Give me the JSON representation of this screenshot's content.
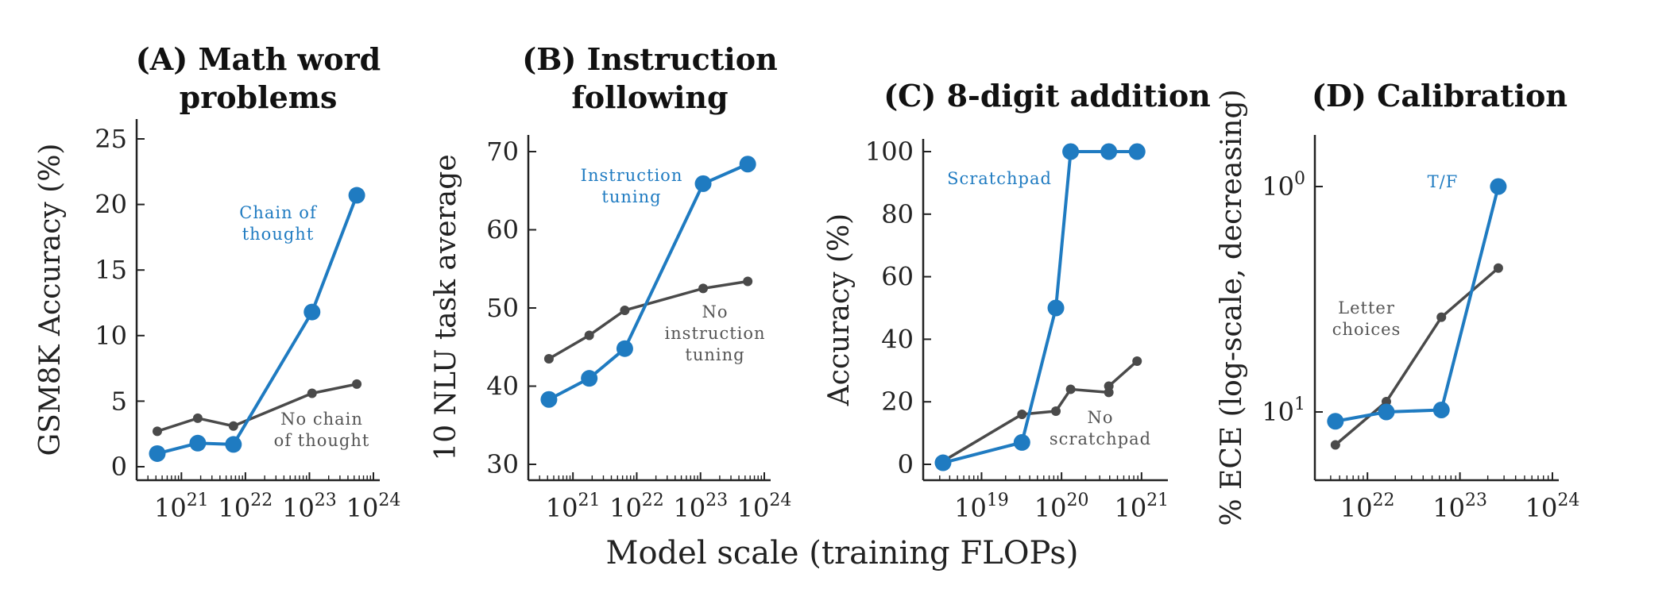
{
  "figure": {
    "shared_xlabel": "Model scale (training FLOPs)"
  },
  "colors": {
    "blue": "#1f7bc1",
    "gray": "#4a4a4a",
    "axis": "#222222"
  },
  "chart_data": [
    {
      "type": "line",
      "panel_id": "A",
      "title_lines": [
        "(A) Math word",
        "problems"
      ],
      "ylabel": "GSM8K Accuracy (%)",
      "xlabel": "",
      "x_scale": "log",
      "x_ticks": [
        "10^21",
        "10^22",
        "10^23",
        "10^24"
      ],
      "y_ticks": [
        0,
        5,
        10,
        15,
        20,
        25
      ],
      "series": [
        {
          "name": "Chain of thought",
          "color": "blue",
          "points": [
            {
              "x": 4.2e+20,
              "y": 1.0
            },
            {
              "x": 1.8e+21,
              "y": 1.8
            },
            {
              "x": 6.5e+21,
              "y": 1.7
            },
            {
              "x": 1.1e+23,
              "y": 11.8
            },
            {
              "x": 5.5e+23,
              "y": 20.7
            }
          ]
        },
        {
          "name": "No chain of thought",
          "color": "gray",
          "points": [
            {
              "x": 4.2e+20,
              "y": 2.7
            },
            {
              "x": 1.8e+21,
              "y": 3.7
            },
            {
              "x": 6.5e+21,
              "y": 3.1
            },
            {
              "x": 1.1e+23,
              "y": 5.6
            },
            {
              "x": 5.5e+23,
              "y": 6.3
            }
          ]
        }
      ],
      "annotations": [
        {
          "lines": [
            "Chain of",
            "thought"
          ],
          "color": "blue"
        },
        {
          "lines": [
            "No chain",
            "of thought"
          ],
          "color": "gray"
        }
      ]
    },
    {
      "type": "line",
      "panel_id": "B",
      "title_lines": [
        "(B) Instruction",
        "following"
      ],
      "ylabel": "10 NLU task average",
      "xlabel": "",
      "x_scale": "log",
      "x_ticks": [
        "10^21",
        "10^22",
        "10^23",
        "10^24"
      ],
      "y_ticks": [
        30,
        40,
        50,
        60,
        70
      ],
      "series": [
        {
          "name": "Instruction tuning",
          "color": "blue",
          "points": [
            {
              "x": 4.2e+20,
              "y": 38.3
            },
            {
              "x": 1.8e+21,
              "y": 41.0
            },
            {
              "x": 6.5e+21,
              "y": 44.8
            },
            {
              "x": 1.1e+23,
              "y": 65.9
            },
            {
              "x": 5.5e+23,
              "y": 68.4
            }
          ]
        },
        {
          "name": "No instruction tuning",
          "color": "gray",
          "points": [
            {
              "x": 4.2e+20,
              "y": 43.5
            },
            {
              "x": 1.8e+21,
              "y": 46.5
            },
            {
              "x": 6.5e+21,
              "y": 49.7
            },
            {
              "x": 1.1e+23,
              "y": 52.5
            },
            {
              "x": 5.5e+23,
              "y": 53.4
            }
          ]
        }
      ],
      "annotations": [
        {
          "lines": [
            "Instruction",
            "tuning"
          ],
          "color": "blue"
        },
        {
          "lines": [
            "No",
            "instruction",
            "tuning"
          ],
          "color": "gray"
        }
      ]
    },
    {
      "type": "line",
      "panel_id": "C",
      "title_lines": [
        "(C) 8-digit addition"
      ],
      "ylabel": "Accuracy (%)",
      "xlabel": "",
      "x_scale": "log",
      "x_ticks": [
        "10^19",
        "10^20",
        "10^21"
      ],
      "y_ticks": [
        0,
        20,
        40,
        60,
        80,
        100
      ],
      "series": [
        {
          "name": "Scratchpad",
          "color": "blue",
          "points": [
            {
              "x": 3.3e+18,
              "y": 0.5
            },
            {
              "x": 3.2e+19,
              "y": 7.0
            },
            {
              "x": 8.5e+19,
              "y": 50.0
            },
            {
              "x": 1.3e+20,
              "y": 100.0
            },
            {
              "x": 3.9e+20,
              "y": 100.0
            },
            {
              "x": 8.8e+20,
              "y": 100.0
            }
          ]
        },
        {
          "name": "No scratchpad",
          "color": "gray",
          "points": [
            {
              "x": 3.3e+18,
              "y": 1.0
            },
            {
              "x": 3.2e+19,
              "y": 16.0
            },
            {
              "x": 8.5e+19,
              "y": 17.0
            },
            {
              "x": 1.3e+20,
              "y": 24.0
            },
            {
              "x": 3.9e+20,
              "y": 23.0
            },
            {
              "x": 3.9e+20,
              "y": 25.0
            },
            {
              "x": 8.8e+20,
              "y": 33.0
            }
          ]
        }
      ],
      "annotations": [
        {
          "lines": [
            "Scratchpad"
          ],
          "color": "blue"
        },
        {
          "lines": [
            "No",
            "scratchpad"
          ],
          "color": "gray"
        }
      ]
    },
    {
      "type": "line",
      "panel_id": "D",
      "title_lines": [
        "(D) Calibration"
      ],
      "ylabel": "% ECE (log-scale, decreasing)",
      "xlabel": "",
      "x_scale": "log",
      "y_scale": "log",
      "y_direction": "decreasing",
      "x_ticks": [
        "10^22",
        "10^23",
        "10^24"
      ],
      "y_ticks": [
        "10^0",
        "10^1"
      ],
      "series": [
        {
          "name": "T/F",
          "color": "blue",
          "points": [
            {
              "x": 4.5e+21,
              "y": 11.0
            },
            {
              "x": 1.6e+22,
              "y": 10.0
            },
            {
              "x": 6.3e+22,
              "y": 9.8
            },
            {
              "x": 2.6e+23,
              "y": 1.0
            }
          ]
        },
        {
          "name": "Letter choices",
          "color": "gray",
          "points": [
            {
              "x": 4.5e+21,
              "y": 14.0
            },
            {
              "x": 1.6e+22,
              "y": 9.0
            },
            {
              "x": 6.3e+22,
              "y": 3.8
            },
            {
              "x": 2.6e+23,
              "y": 2.3
            }
          ]
        }
      ],
      "annotations": [
        {
          "lines": [
            "T/F"
          ],
          "color": "blue"
        },
        {
          "lines": [
            "Letter",
            "choices"
          ],
          "color": "gray"
        }
      ]
    }
  ]
}
